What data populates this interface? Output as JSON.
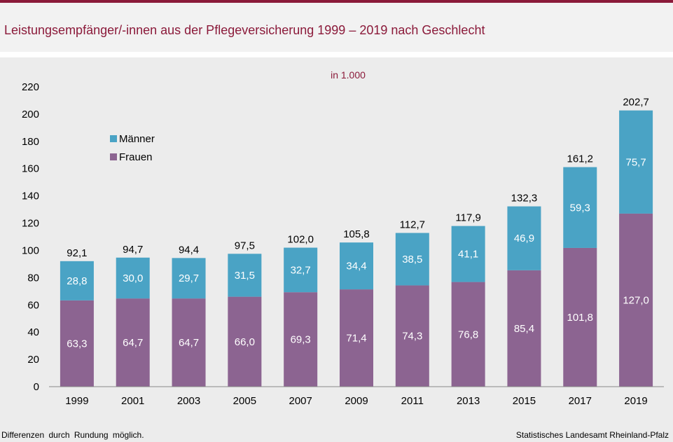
{
  "title": "Leistungsempfänger/-innen aus der Pflegeversicherung 1999 – 2019 nach Geschlecht",
  "footer_left": "Differenzen durch Rundung möglich.",
  "footer_right": "Statistisches Landesamt Rheinland-Pfalz",
  "colors": {
    "brand": "#8b1a3a",
    "maenner": "#4aa3c5",
    "frauen": "#8c6491"
  },
  "chart_data": {
    "type": "bar",
    "stacked": true,
    "unit_label": "in 1.000",
    "categories": [
      "1999",
      "2001",
      "2003",
      "2005",
      "2007",
      "2009",
      "2011",
      "2013",
      "2015",
      "2017",
      "2019"
    ],
    "series": [
      {
        "name": "Frauen",
        "values": [
          63.3,
          64.7,
          64.7,
          66.0,
          69.3,
          71.4,
          74.3,
          76.8,
          85.4,
          101.8,
          127.0
        ],
        "labels": [
          "63,3",
          "64,7",
          "64,7",
          "66,0",
          "69,3",
          "71,4",
          "74,3",
          "76,8",
          "85,4",
          "101,8",
          "127,0"
        ]
      },
      {
        "name": "Männer",
        "values": [
          28.8,
          30.0,
          29.7,
          31.5,
          32.7,
          34.4,
          38.5,
          41.1,
          46.9,
          59.3,
          75.7
        ],
        "labels": [
          "28,8",
          "30,0",
          "29,7",
          "31,5",
          "32,7",
          "34,4",
          "38,5",
          "41,1",
          "46,9",
          "59,3",
          "75,7"
        ]
      }
    ],
    "totals": [
      92.1,
      94.7,
      94.4,
      97.5,
      102.0,
      105.8,
      112.7,
      117.9,
      132.3,
      161.2,
      202.7
    ],
    "total_labels": [
      "92,1",
      "94,7",
      "94,4",
      "97,5",
      "102,0",
      "105,8",
      "112,7",
      "117,9",
      "132,3",
      "161,2",
      "202,7"
    ],
    "ylim": [
      0,
      220
    ],
    "yticks": [
      0,
      20,
      40,
      60,
      80,
      100,
      120,
      140,
      160,
      180,
      200,
      220
    ],
    "legend": [
      {
        "name": "Männer",
        "color": "#4aa3c5"
      },
      {
        "name": "Frauen",
        "color": "#8c6491"
      }
    ],
    "legend_position": "top-left",
    "grid": false
  }
}
